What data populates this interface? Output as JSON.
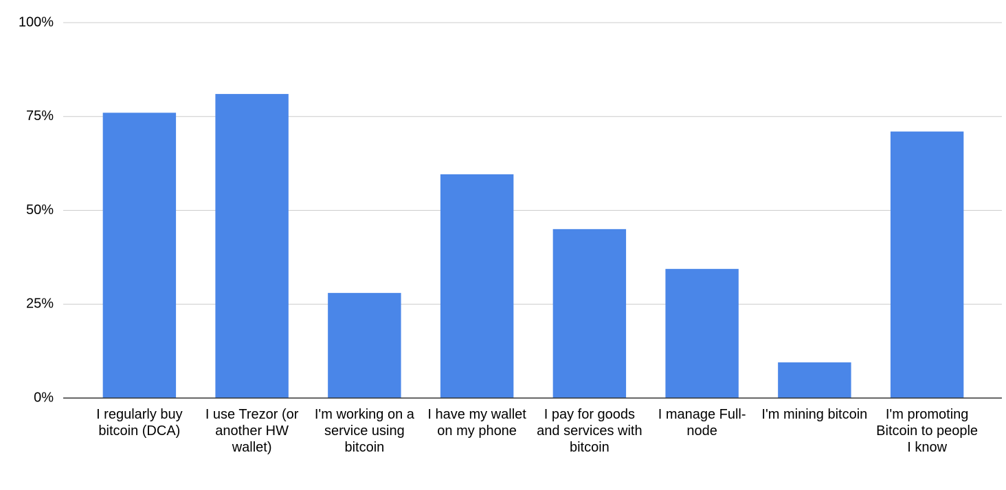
{
  "chart_data": {
    "type": "bar",
    "categories": [
      "I regularly buy bitcoin (DCA)",
      "I use Trezor (or another HW wallet)",
      "I'm working on a service using bitcoin",
      "I have my wallet on my phone",
      "I pay for goods and services with bitcoin",
      "I manage Full-node",
      "I'm mining bitcoin",
      "I'm promoting Bitcoin to people I know"
    ],
    "values": [
      76,
      81,
      28,
      59.6,
      45,
      34.4,
      9.5,
      71
    ],
    "color": "#4a86e8",
    "ylim": [
      0,
      100
    ],
    "yticks": [
      {
        "value": 0,
        "label": "0%"
      },
      {
        "value": 25,
        "label": "25%"
      },
      {
        "value": 50,
        "label": "50%"
      },
      {
        "value": 75,
        "label": "75%"
      },
      {
        "value": 100,
        "label": "100%"
      }
    ],
    "grid": true
  }
}
